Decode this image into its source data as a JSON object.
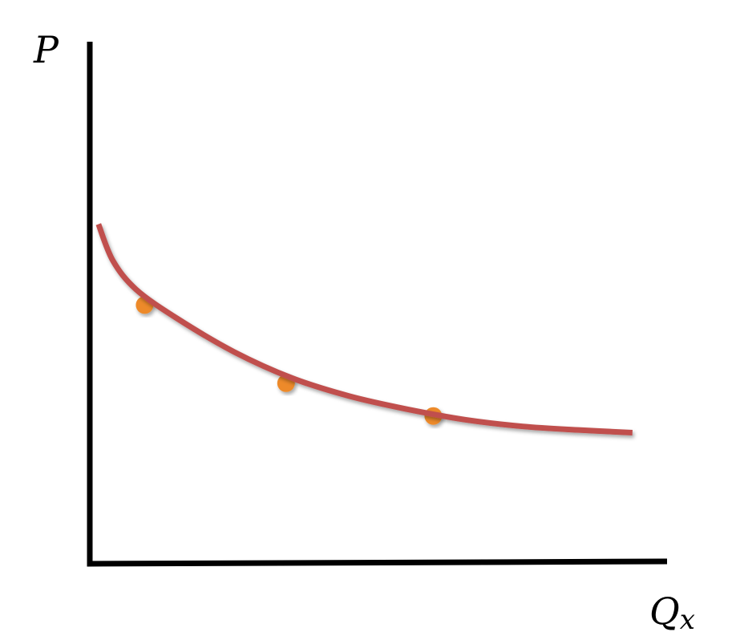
{
  "chart_data": {
    "type": "line",
    "xlabel": "Q",
    "xlabel_subscript": "x",
    "ylabel": "P",
    "xlim": [
      0,
      10
    ],
    "ylim": [
      0,
      10
    ],
    "grid": false,
    "ticks": false,
    "series": [
      {
        "curve": "demand",
        "color": "#c0504d",
        "x": [
          0.15,
          0.4,
          0.8,
          1.5,
          2.5,
          3.5,
          4.5,
          5.5,
          6.5,
          7.5,
          8.5,
          9.4
        ],
        "y": [
          6.5,
          5.8,
          5.25,
          4.7,
          4.05,
          3.55,
          3.2,
          2.95,
          2.75,
          2.62,
          2.55,
          2.5
        ]
      }
    ],
    "points": {
      "color": "#ed8a2b",
      "x": [
        0.95,
        3.4,
        5.95
      ],
      "y": [
        4.95,
        3.45,
        2.82
      ]
    }
  }
}
